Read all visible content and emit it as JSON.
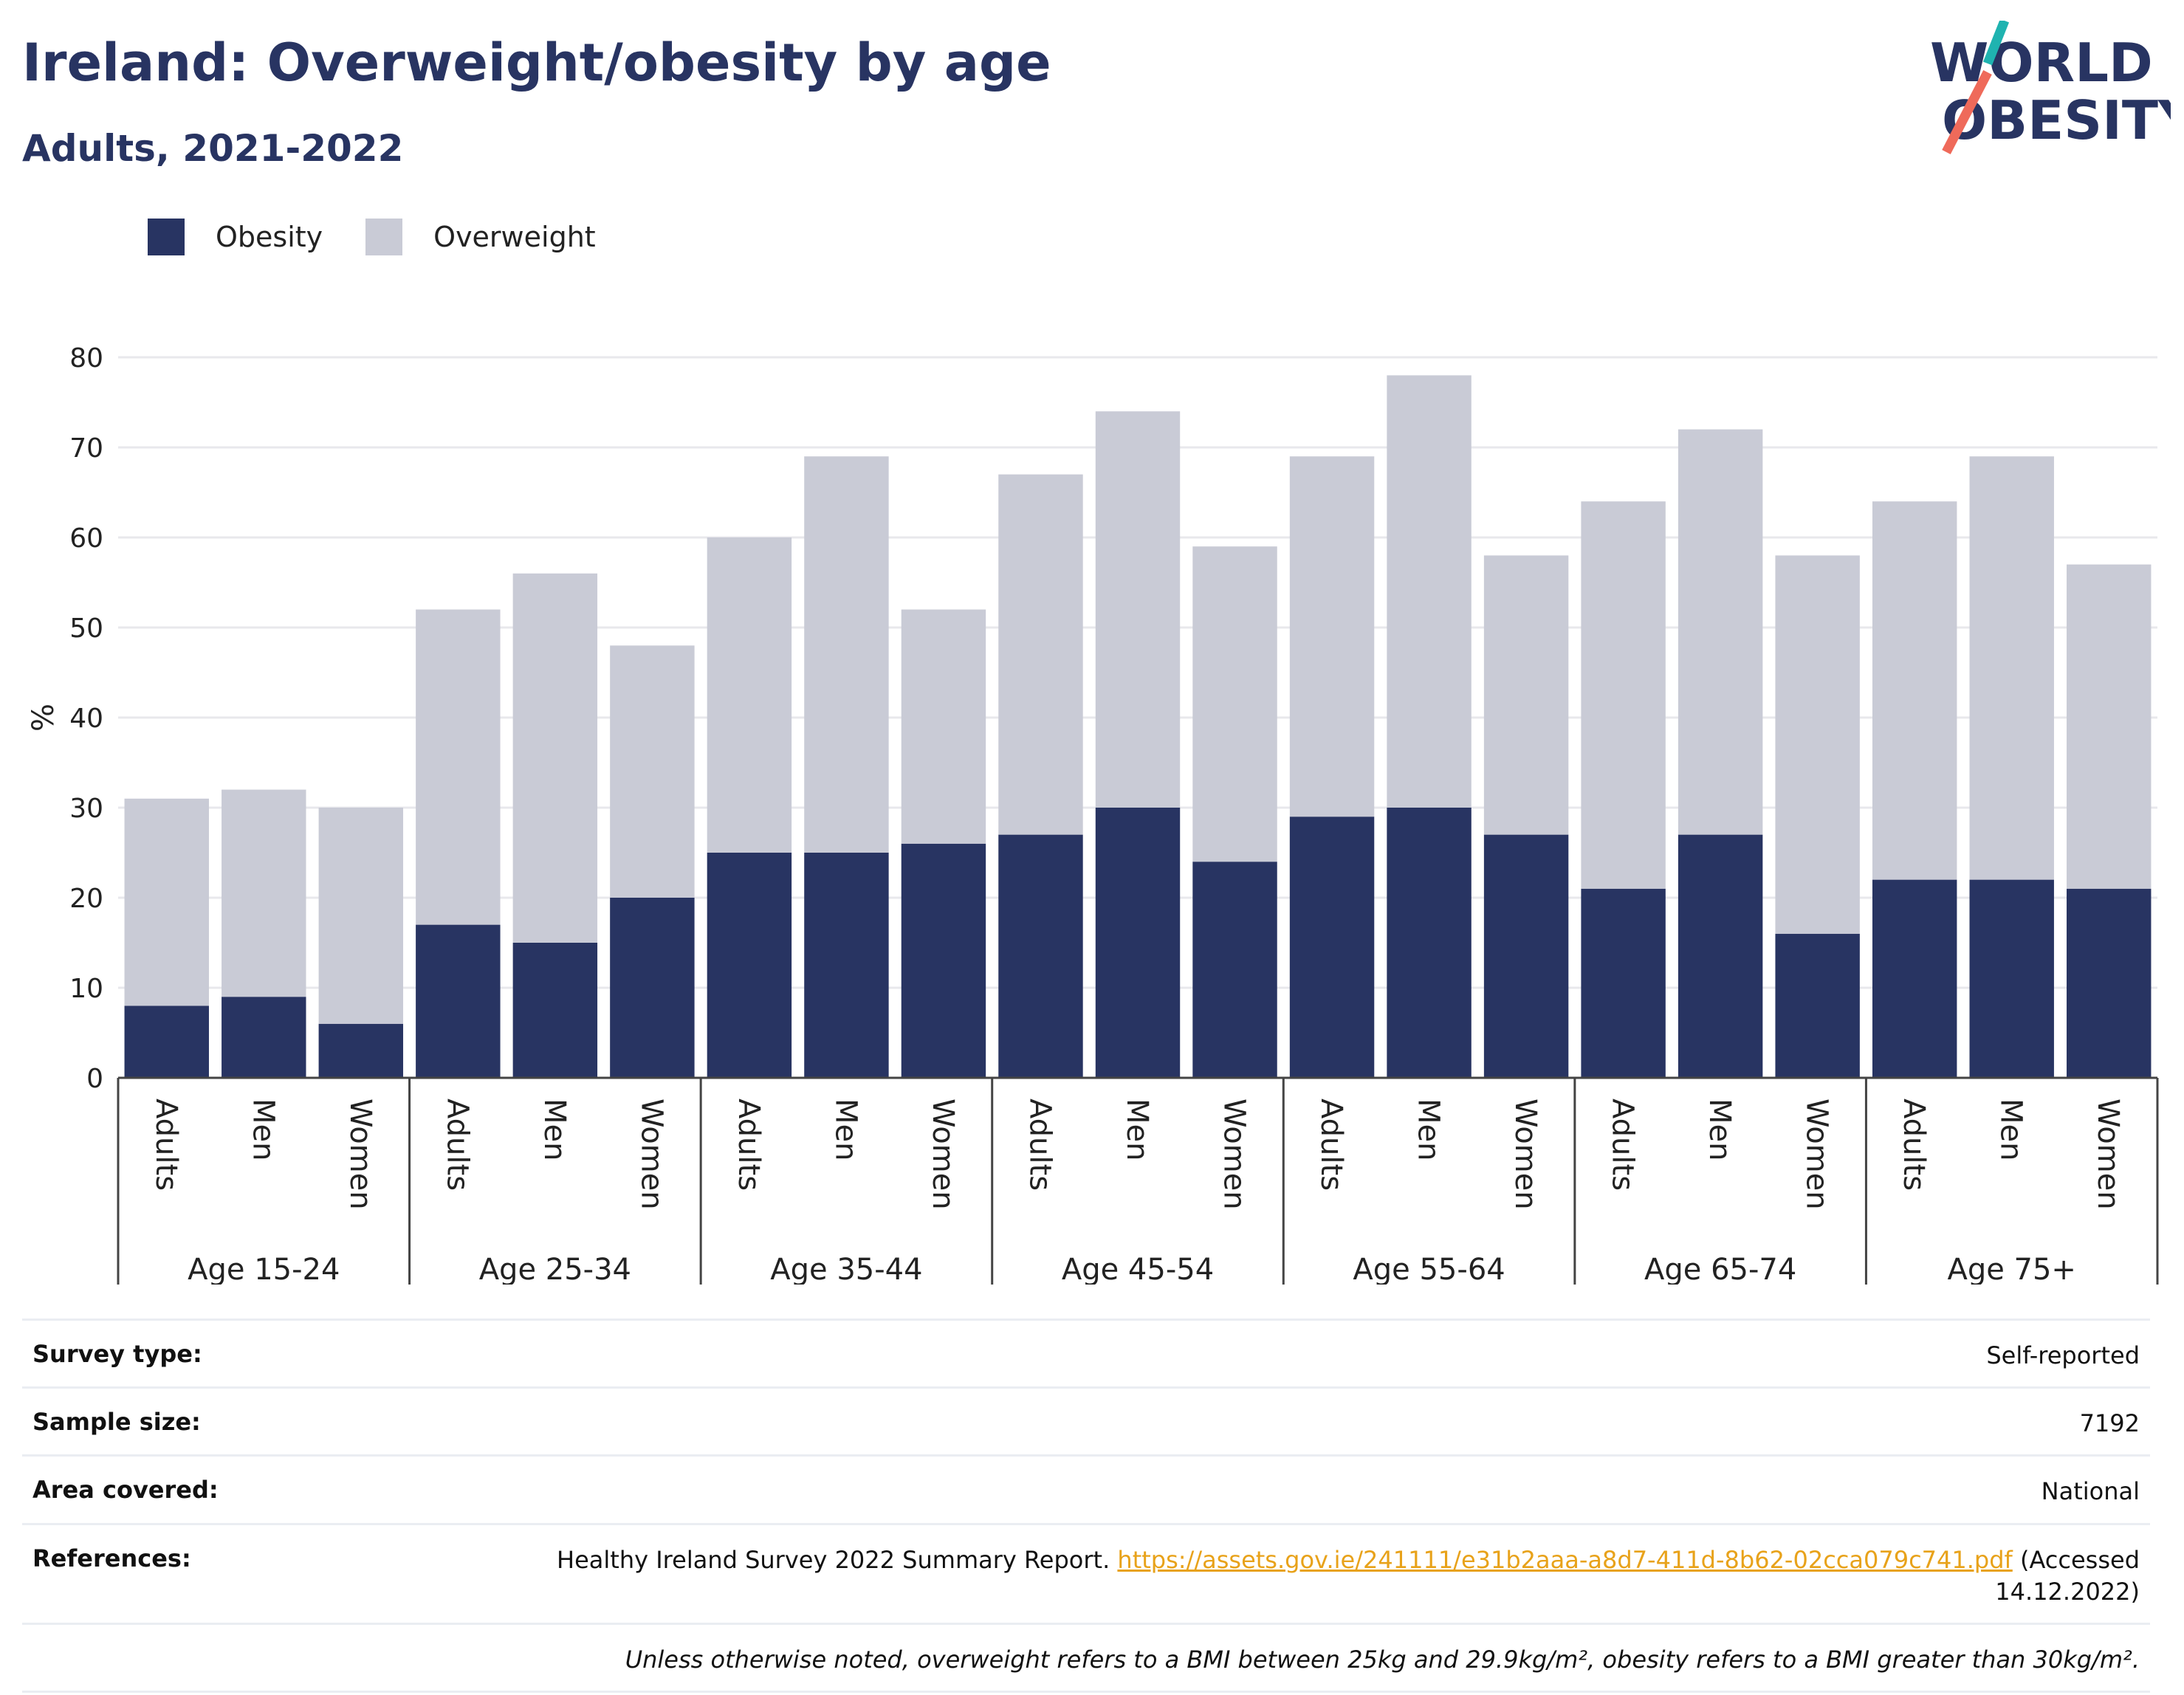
{
  "title": "Ireland: Overweight/obesity by age",
  "subtitle": "Adults, 2021-2022",
  "logo": {
    "line1": "WORLD",
    "line2": "OBESITY"
  },
  "colors": {
    "obesity": "#283462",
    "overweight": "#c9cbd6",
    "grid": "#e8e8ec",
    "axis": "#444444",
    "link": "#e8a21a"
  },
  "legend": [
    {
      "label": "Obesity",
      "color": "#283462"
    },
    {
      "label": "Overweight",
      "color": "#c9cbd6"
    }
  ],
  "chart_data": {
    "type": "bar",
    "stacked": true,
    "ylabel": "%",
    "ylim": [
      0,
      80
    ],
    "yticks": [
      0,
      10,
      20,
      30,
      40,
      50,
      60,
      70,
      80
    ],
    "grid": true,
    "legend_position": "top-left",
    "groups": [
      "Age 15-24",
      "Age 25-34",
      "Age 35-44",
      "Age 45-54",
      "Age 55-64",
      "Age 65-74",
      "Age 75+"
    ],
    "categories": [
      "Adults",
      "Men",
      "Women"
    ],
    "series": [
      {
        "name": "Obesity",
        "values": [
          [
            8,
            9,
            6
          ],
          [
            17,
            15,
            20
          ],
          [
            25,
            25,
            26
          ],
          [
            27,
            30,
            24
          ],
          [
            29,
            30,
            27
          ],
          [
            21,
            27,
            16
          ],
          [
            22,
            22,
            21
          ]
        ]
      },
      {
        "name": "Overweight",
        "values": [
          [
            23,
            23,
            24
          ],
          [
            35,
            41,
            28
          ],
          [
            35,
            44,
            26
          ],
          [
            40,
            44,
            35
          ],
          [
            40,
            48,
            31
          ],
          [
            43,
            45,
            42
          ],
          [
            42,
            47,
            36
          ]
        ]
      }
    ]
  },
  "info": {
    "survey_type_label": "Survey type:",
    "survey_type": "Self-reported",
    "sample_size_label": "Sample size:",
    "sample_size": "7192",
    "area_label": "Area covered:",
    "area": "National",
    "references_label": "References:",
    "reference_text": "Healthy Ireland Survey 2022 Summary Report.",
    "reference_url": "https://assets.gov.ie/241111/e31b2aaa-a8d7-411d-8b62-02cca079c741.pdf",
    "reference_accessed": "(Accessed 14.12.2022)",
    "note": "Unless otherwise noted, overweight refers to a BMI between 25kg and 29.9kg/m², obesity refers to a BMI greater than 30kg/m²."
  }
}
